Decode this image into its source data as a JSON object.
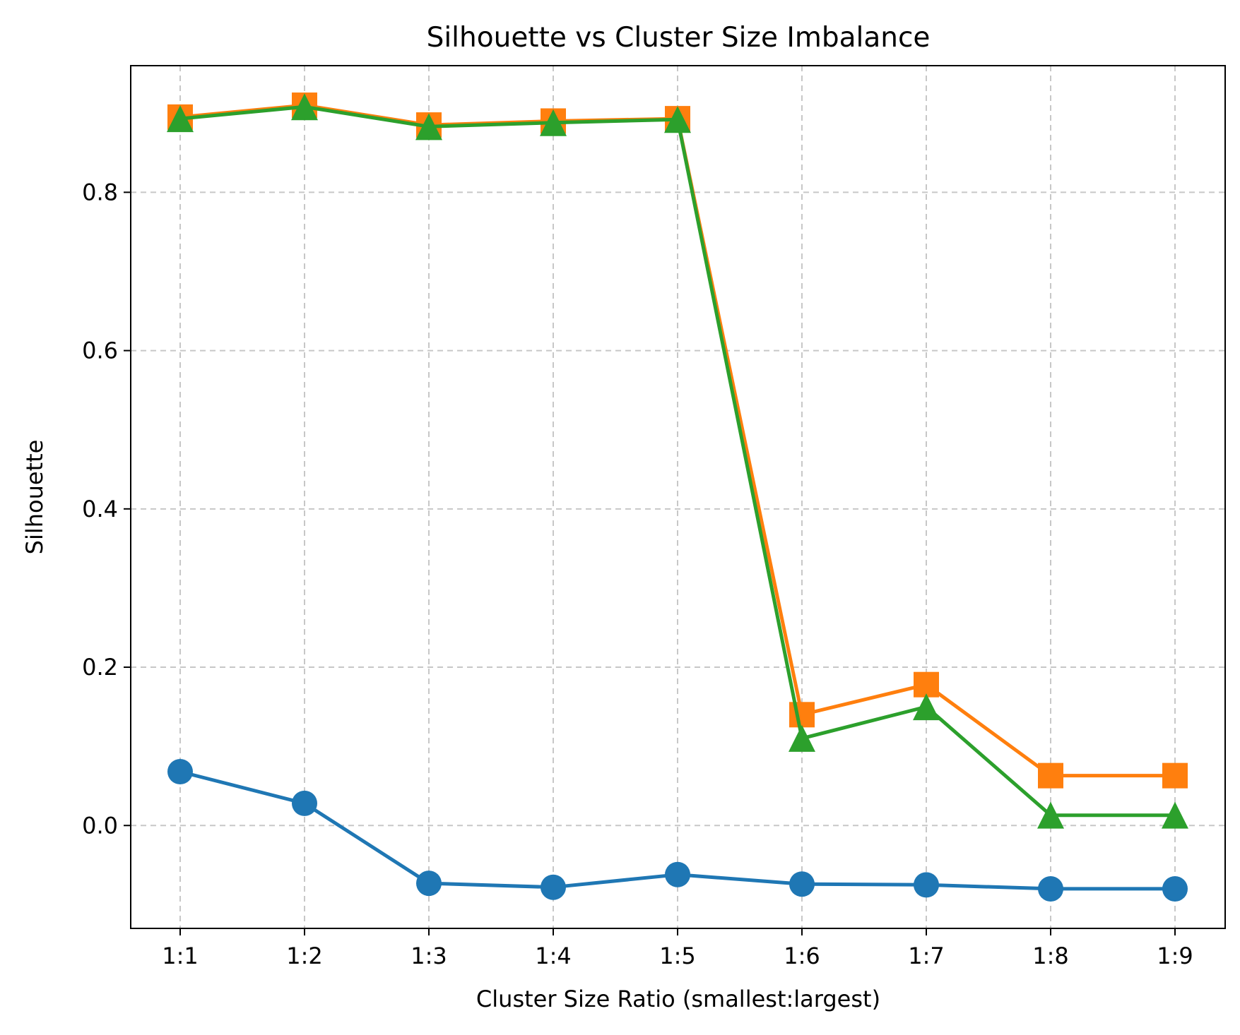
{
  "chart_data": {
    "type": "line",
    "title": "Silhouette vs Cluster Size Imbalance",
    "xlabel": "Cluster Size Ratio (smallest:largest)",
    "ylabel": "Silhouette",
    "categories": [
      "1:1",
      "1:2",
      "1:3",
      "1:4",
      "1:5",
      "1:6",
      "1:7",
      "1:8",
      "1:9"
    ],
    "ylim": [
      -0.13,
      0.96
    ],
    "yticks": [
      0.0,
      0.2,
      0.4,
      0.6,
      0.8
    ],
    "ytick_labels": [
      "0.0",
      "0.2",
      "0.4",
      "0.6",
      "0.8"
    ],
    "grid": true,
    "legend": "none",
    "series": [
      {
        "color": "#1f77b4",
        "marker": "circle",
        "values": [
          0.068,
          0.028,
          -0.073,
          -0.078,
          -0.062,
          -0.074,
          -0.075,
          -0.08,
          -0.08
        ]
      },
      {
        "color": "#ff7f0e",
        "marker": "square",
        "values": [
          0.895,
          0.91,
          0.885,
          0.89,
          0.893,
          0.14,
          0.178,
          0.063,
          0.063
        ]
      },
      {
        "color": "#2ca02c",
        "marker": "triangle",
        "values": [
          0.893,
          0.908,
          0.883,
          0.888,
          0.892,
          0.11,
          0.15,
          0.013,
          0.013
        ]
      }
    ]
  }
}
